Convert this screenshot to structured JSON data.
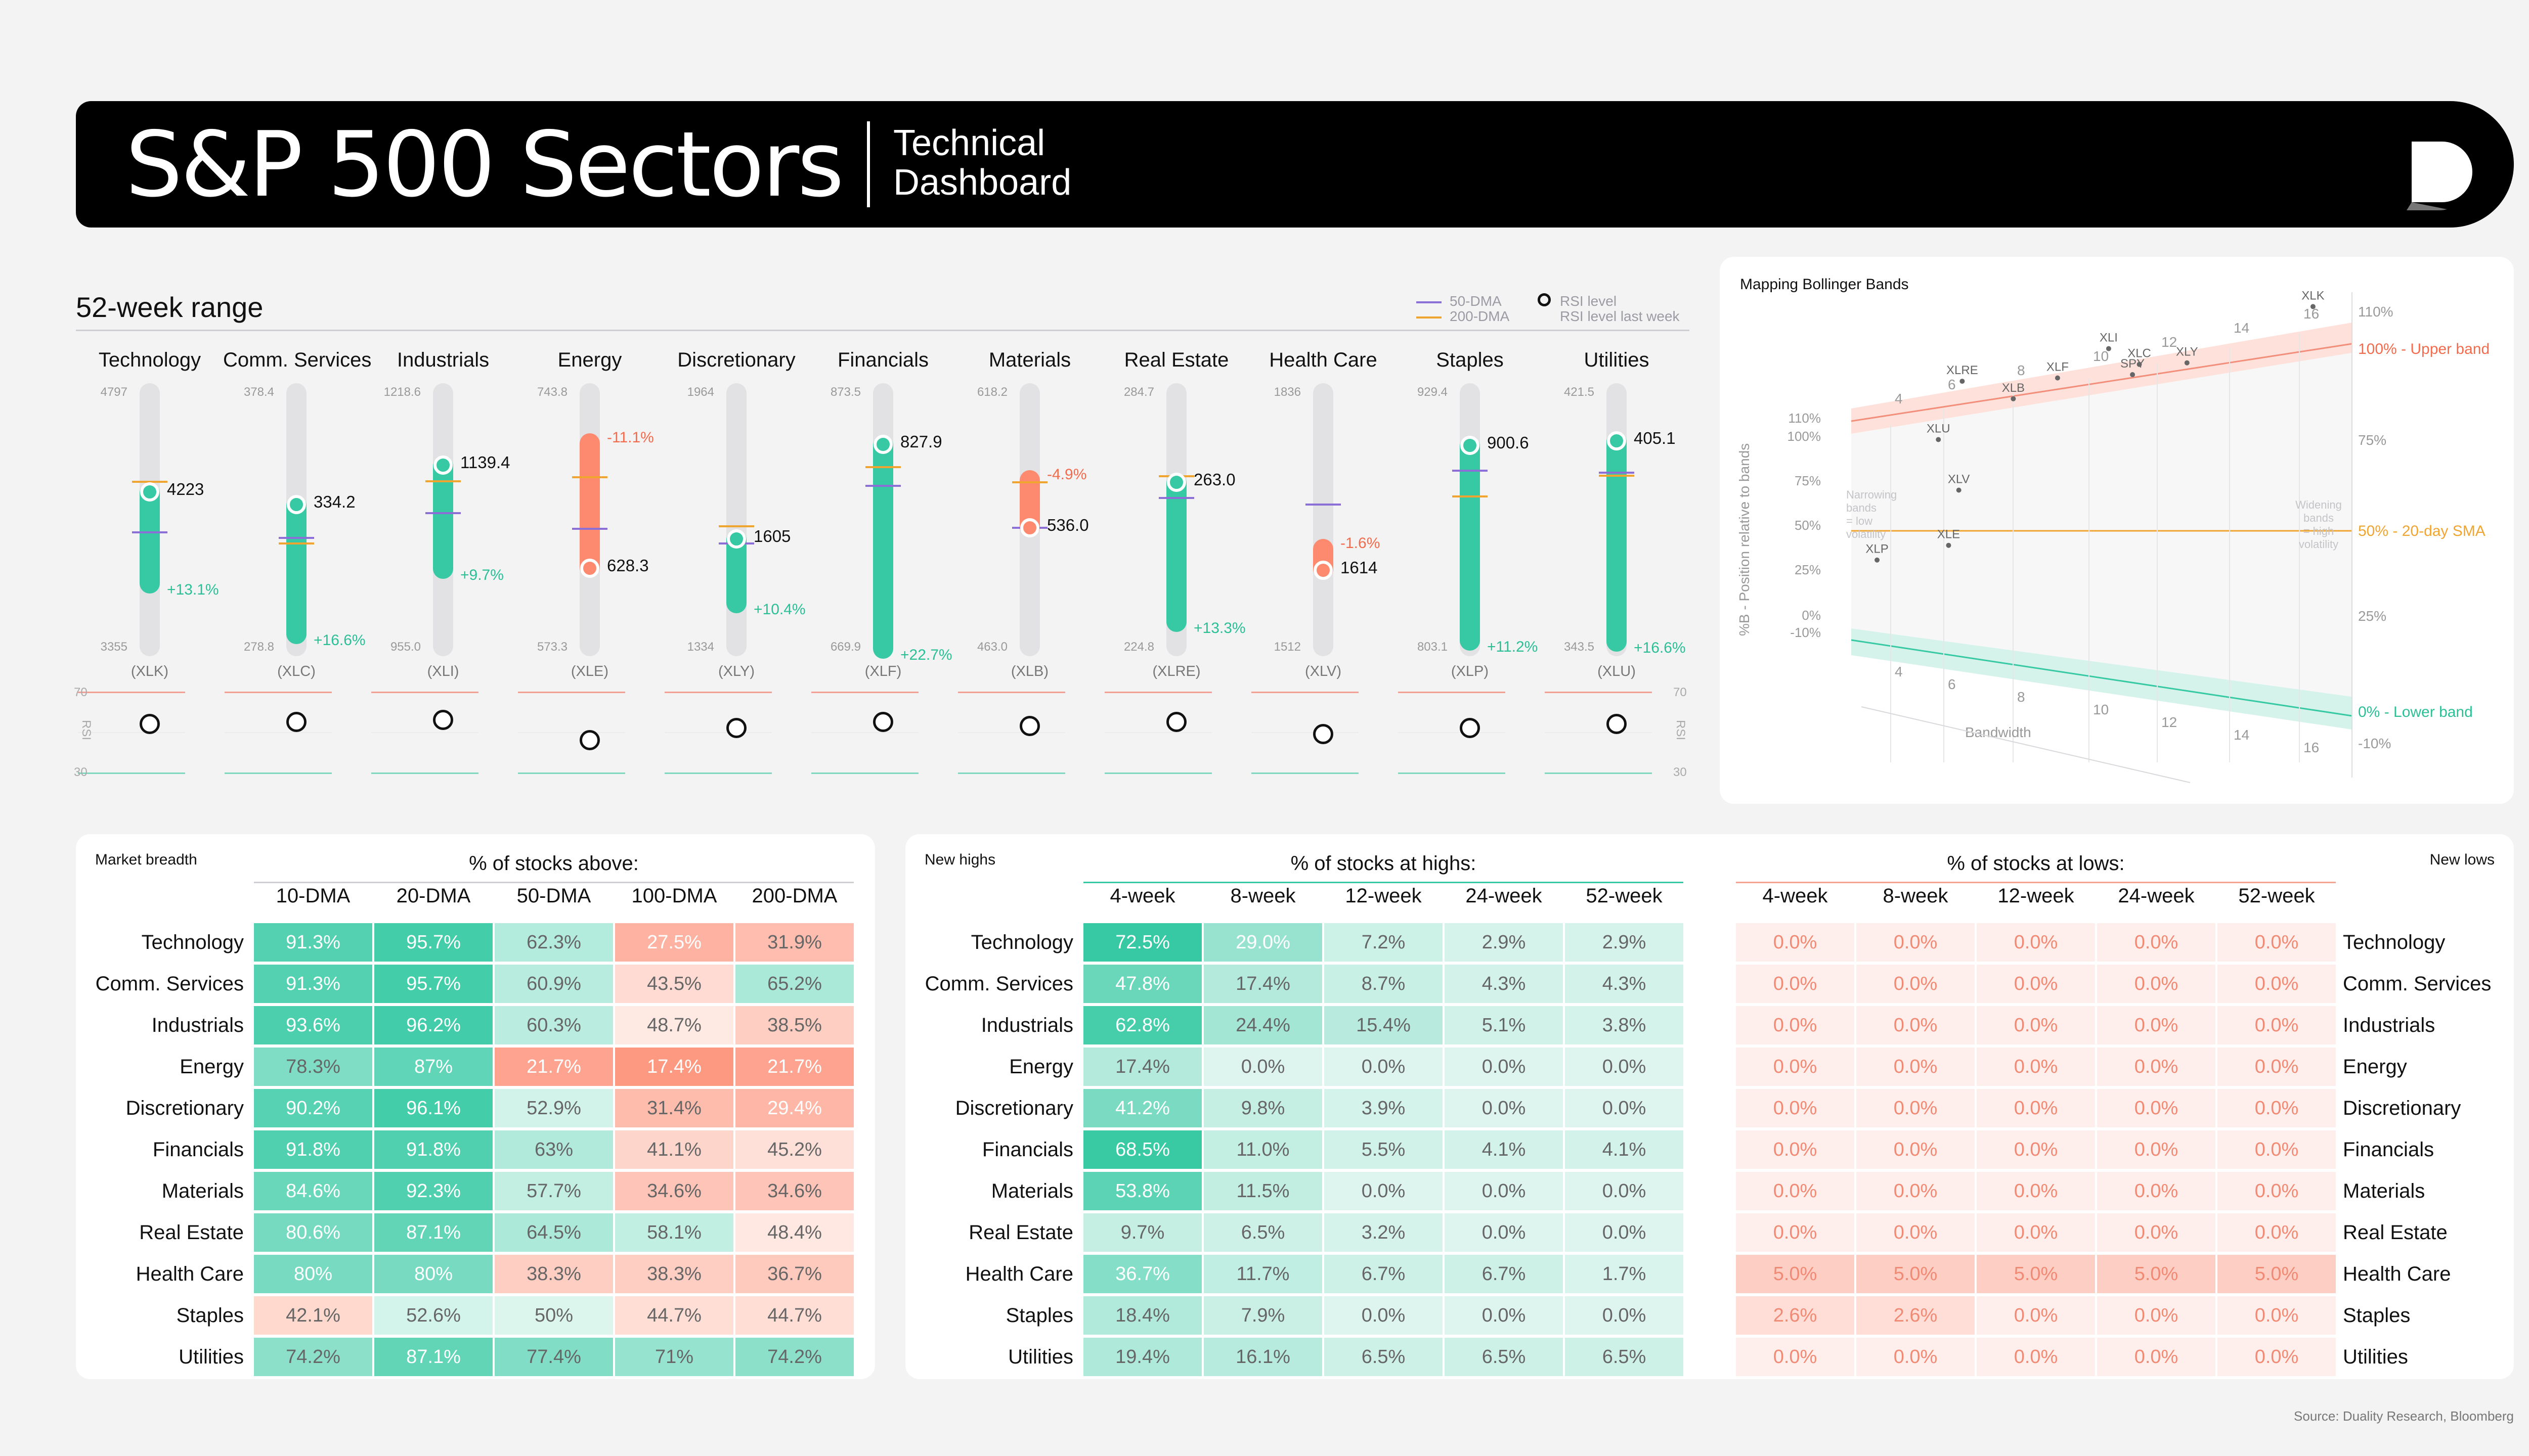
{
  "header": {
    "title": "S&P 500 Sectors",
    "subtitle_line1": "Technical",
    "subtitle_line2": "Dashboard",
    "logo_icon": "duality-logo-icon"
  },
  "range_panel": {
    "title": "52-week range",
    "legend": {
      "dma50": "50-DMA",
      "dma200": "200-DMA",
      "rsi": "RSI level",
      "rsi_last": "RSI level last week"
    },
    "rsi_axis_label": "RSI",
    "rsi_top": "70",
    "rsi_bottom": "30",
    "colors": {
      "positive": "#36c9a3",
      "negative": "#fd8a6f",
      "dma50": "#8b6fd6",
      "dma200": "#f0a531"
    }
  },
  "chart_data": [
    {
      "type": "range",
      "title": "52-week range",
      "sectors": [
        {
          "name": "Technology",
          "ticker": "(XLK)",
          "high": "4797",
          "low": "3355",
          "high_v": 4797,
          "low_v": 3355,
          "price": "4223",
          "price_v": 4223,
          "change": "+13.1%",
          "dir": "pos",
          "dma50": 4010,
          "dma200": 4275,
          "rsi": 54
        },
        {
          "name": "Comm. Services",
          "ticker": "(XLC)",
          "high": "378.4",
          "low": "278.8",
          "high_v": 378.4,
          "low_v": 278.8,
          "price": "334.2",
          "price_v": 334.2,
          "change": "+16.6%",
          "dir": "pos",
          "dma50": 322,
          "dma200": 320,
          "rsi": 55
        },
        {
          "name": "Industrials",
          "ticker": "(XLI)",
          "high": "1218.6",
          "low": "955.0",
          "high_v": 1218.6,
          "low_v": 955.0,
          "price": "1139.4",
          "price_v": 1139.4,
          "change": "+9.7%",
          "dir": "pos",
          "dma50": 1093,
          "dma200": 1124,
          "rsi": 56
        },
        {
          "name": "Energy",
          "ticker": "(XLE)",
          "high": "743.8",
          "low": "573.3",
          "high_v": 743.8,
          "low_v": 573.3,
          "price": "628.3",
          "price_v": 628.3,
          "change": "-11.1%",
          "dir": "neg",
          "dma50": 653,
          "dma200": 685,
          "rsi": 46
        },
        {
          "name": "Discretionary",
          "ticker": "(XLY)",
          "high": "1964",
          "low": "1334",
          "high_v": 1964,
          "low_v": 1334,
          "price": "1605",
          "price_v": 1605,
          "change": "+10.4%",
          "dir": "pos",
          "dma50": 1594,
          "dma200": 1634,
          "rsi": 52
        },
        {
          "name": "Financials",
          "ticker": "(XLF)",
          "high": "873.5",
          "low": "669.9",
          "high_v": 873.5,
          "low_v": 669.9,
          "price": "827.9",
          "price_v": 827.9,
          "change": "+22.7%",
          "dir": "pos",
          "dma50": 797,
          "dma200": 811,
          "rsi": 55
        },
        {
          "name": "Materials",
          "ticker": "(XLB)",
          "high": "618.2",
          "low": "463.0",
          "high_v": 618.2,
          "low_v": 463.0,
          "price": "536.0",
          "price_v": 536.0,
          "change": "-4.9%",
          "dir": "neg",
          "dma50": 536,
          "dma200": 562,
          "rsi": 53
        },
        {
          "name": "Real Estate",
          "ticker": "(XLRE)",
          "high": "284.7",
          "low": "224.8",
          "high_v": 284.7,
          "low_v": 224.8,
          "price": "263.0",
          "price_v": 263.0,
          "change": "+13.3%",
          "dir": "pos",
          "dma50": 259.5,
          "dma200": 264.3,
          "rsi": 55
        },
        {
          "name": "Health Care",
          "ticker": "(XLV)",
          "high": "1836",
          "low": "1512",
          "high_v": 1836,
          "low_v": 1512,
          "price": "1614",
          "price_v": 1614,
          "change": "-1.6%",
          "dir": "neg",
          "dma50": 1692,
          "dma200": 1692,
          "rsi": 49
        },
        {
          "name": "Staples",
          "ticker": "(XLP)",
          "high": "929.4",
          "low": "803.1",
          "high_v": 929.4,
          "low_v": 803.1,
          "price": "900.6",
          "price_v": 900.6,
          "change": "+11.2%",
          "dir": "pos",
          "dma50": 889,
          "dma200": 877,
          "rsi": 52
        },
        {
          "name": "Utilities",
          "ticker": "(XLU)",
          "high": "421.5",
          "low": "343.5",
          "high_v": 421.5,
          "low_v": 343.5,
          "price": "405.1",
          "price_v": 405.1,
          "change": "+16.6%",
          "dir": "pos",
          "dma50": 396,
          "dma200": 395,
          "rsi": 54
        }
      ]
    },
    {
      "type": "scatter",
      "title": "Mapping Bollinger Bands",
      "ylabel": "%B - Position relative to bands",
      "xlabel": "Bandwidth",
      "y_ticks_left": [
        "110%",
        "100%",
        "75%",
        "50%",
        "25%",
        "0%",
        "-10%"
      ],
      "y_ticks_right": [
        "110%",
        "75%",
        "25%",
        "-10%"
      ],
      "band_labels": {
        "upper": "100% - Upper band",
        "mid": "50% - 20-day SMA",
        "lower": "0% - Lower band"
      },
      "x_ticks": [
        "4",
        "6",
        "8",
        "10",
        "12",
        "14",
        "16"
      ],
      "notes": {
        "left": [
          "Narrowing",
          "bands",
          "= low",
          "volatility"
        ],
        "right": [
          "Widening",
          "bands",
          "= high",
          "volatility"
        ]
      },
      "points": [
        {
          "label": "XLP",
          "x": 3.6,
          "y": 37
        },
        {
          "label": "XLE",
          "x": 5.7,
          "y": 44
        },
        {
          "label": "XLV",
          "x": 6.0,
          "y": 66
        },
        {
          "label": "XLU",
          "x": 5.4,
          "y": 87
        },
        {
          "label": "XLRE",
          "x": 6.1,
          "y": 109
        },
        {
          "label": "XLB",
          "x": 7.6,
          "y": 99
        },
        {
          "label": "XLF",
          "x": 8.9,
          "y": 104
        },
        {
          "label": "XLI",
          "x": 10.4,
          "y": 111
        },
        {
          "label": "SPY",
          "x": 11.1,
          "y": 101
        },
        {
          "label": "XLC",
          "x": 11.3,
          "y": 104
        },
        {
          "label": "XLY",
          "x": 12.7,
          "y": 102
        },
        {
          "label": "XLK",
          "x": 16.4,
          "y": 112
        }
      ]
    }
  ],
  "breadth": {
    "title": "Market breadth",
    "group": "% of stocks above:",
    "columns": [
      "10-DMA",
      "20-DMA",
      "50-DMA",
      "100-DMA",
      "200-DMA"
    ],
    "rows": [
      {
        "name": "Technology",
        "values": [
          "91.3%",
          "95.7%",
          "62.3%",
          "27.5%",
          "31.9%"
        ],
        "v": [
          91.3,
          95.7,
          62.3,
          27.5,
          31.9
        ]
      },
      {
        "name": "Comm. Services",
        "values": [
          "91.3%",
          "95.7%",
          "60.9%",
          "43.5%",
          "65.2%"
        ],
        "v": [
          91.3,
          95.7,
          60.9,
          43.5,
          65.2
        ]
      },
      {
        "name": "Industrials",
        "values": [
          "93.6%",
          "96.2%",
          "60.3%",
          "48.7%",
          "38.5%"
        ],
        "v": [
          93.6,
          96.2,
          60.3,
          48.7,
          38.5
        ]
      },
      {
        "name": "Energy",
        "values": [
          "78.3%",
          "87%",
          "21.7%",
          "17.4%",
          "21.7%"
        ],
        "v": [
          78.3,
          87,
          21.7,
          17.4,
          21.7
        ]
      },
      {
        "name": "Discretionary",
        "values": [
          "90.2%",
          "96.1%",
          "52.9%",
          "31.4%",
          "29.4%"
        ],
        "v": [
          90.2,
          96.1,
          52.9,
          31.4,
          29.4
        ]
      },
      {
        "name": "Financials",
        "values": [
          "91.8%",
          "91.8%",
          "63%",
          "41.1%",
          "45.2%"
        ],
        "v": [
          91.8,
          91.8,
          63,
          41.1,
          45.2
        ]
      },
      {
        "name": "Materials",
        "values": [
          "84.6%",
          "92.3%",
          "57.7%",
          "34.6%",
          "34.6%"
        ],
        "v": [
          84.6,
          92.3,
          57.7,
          34.6,
          34.6
        ]
      },
      {
        "name": "Real Estate",
        "values": [
          "80.6%",
          "87.1%",
          "64.5%",
          "58.1%",
          "48.4%"
        ],
        "v": [
          80.6,
          87.1,
          64.5,
          58.1,
          48.4
        ]
      },
      {
        "name": "Health Care",
        "values": [
          "80%",
          "80%",
          "38.3%",
          "38.3%",
          "36.7%"
        ],
        "v": [
          80,
          80,
          38.3,
          38.3,
          36.7
        ]
      },
      {
        "name": "Staples",
        "values": [
          "42.1%",
          "52.6%",
          "50%",
          "44.7%",
          "44.7%"
        ],
        "v": [
          42.1,
          52.6,
          50,
          44.7,
          44.7
        ]
      },
      {
        "name": "Utilities",
        "values": [
          "74.2%",
          "87.1%",
          "77.4%",
          "71%",
          "74.2%"
        ],
        "v": [
          74.2,
          87.1,
          77.4,
          71,
          74.2
        ]
      }
    ]
  },
  "highs_lows": {
    "title_highs": "New highs",
    "title_lows": "New lows",
    "group_highs": "% of stocks at highs:",
    "group_lows": "% of stocks at lows:",
    "columns": [
      "4-week",
      "8-week",
      "12-week",
      "24-week",
      "52-week"
    ],
    "rows": [
      {
        "name": "Technology",
        "highs": [
          "72.5%",
          "29.0%",
          "7.2%",
          "2.9%",
          "2.9%"
        ],
        "h": [
          72.5,
          29.0,
          7.2,
          2.9,
          2.9
        ],
        "lows": [
          "0.0%",
          "0.0%",
          "0.0%",
          "0.0%",
          "0.0%"
        ],
        "l": [
          0,
          0,
          0,
          0,
          0
        ]
      },
      {
        "name": "Comm. Services",
        "highs": [
          "47.8%",
          "17.4%",
          "8.7%",
          "4.3%",
          "4.3%"
        ],
        "h": [
          47.8,
          17.4,
          8.7,
          4.3,
          4.3
        ],
        "lows": [
          "0.0%",
          "0.0%",
          "0.0%",
          "0.0%",
          "0.0%"
        ],
        "l": [
          0,
          0,
          0,
          0,
          0
        ]
      },
      {
        "name": "Industrials",
        "highs": [
          "62.8%",
          "24.4%",
          "15.4%",
          "5.1%",
          "3.8%"
        ],
        "h": [
          62.8,
          24.4,
          15.4,
          5.1,
          3.8
        ],
        "lows": [
          "0.0%",
          "0.0%",
          "0.0%",
          "0.0%",
          "0.0%"
        ],
        "l": [
          0,
          0,
          0,
          0,
          0
        ]
      },
      {
        "name": "Energy",
        "highs": [
          "17.4%",
          "0.0%",
          "0.0%",
          "0.0%",
          "0.0%"
        ],
        "h": [
          17.4,
          0,
          0,
          0,
          0
        ],
        "lows": [
          "0.0%",
          "0.0%",
          "0.0%",
          "0.0%",
          "0.0%"
        ],
        "l": [
          0,
          0,
          0,
          0,
          0
        ]
      },
      {
        "name": "Discretionary",
        "highs": [
          "41.2%",
          "9.8%",
          "3.9%",
          "0.0%",
          "0.0%"
        ],
        "h": [
          41.2,
          9.8,
          3.9,
          0,
          0
        ],
        "lows": [
          "0.0%",
          "0.0%",
          "0.0%",
          "0.0%",
          "0.0%"
        ],
        "l": [
          0,
          0,
          0,
          0,
          0
        ]
      },
      {
        "name": "Financials",
        "highs": [
          "68.5%",
          "11.0%",
          "5.5%",
          "4.1%",
          "4.1%"
        ],
        "h": [
          68.5,
          11.0,
          5.5,
          4.1,
          4.1
        ],
        "lows": [
          "0.0%",
          "0.0%",
          "0.0%",
          "0.0%",
          "0.0%"
        ],
        "l": [
          0,
          0,
          0,
          0,
          0
        ]
      },
      {
        "name": "Materials",
        "highs": [
          "53.8%",
          "11.5%",
          "0.0%",
          "0.0%",
          "0.0%"
        ],
        "h": [
          53.8,
          11.5,
          0,
          0,
          0
        ],
        "lows": [
          "0.0%",
          "0.0%",
          "0.0%",
          "0.0%",
          "0.0%"
        ],
        "l": [
          0,
          0,
          0,
          0,
          0
        ]
      },
      {
        "name": "Real Estate",
        "highs": [
          "9.7%",
          "6.5%",
          "3.2%",
          "0.0%",
          "0.0%"
        ],
        "h": [
          9.7,
          6.5,
          3.2,
          0,
          0
        ],
        "lows": [
          "0.0%",
          "0.0%",
          "0.0%",
          "0.0%",
          "0.0%"
        ],
        "l": [
          0,
          0,
          0,
          0,
          0
        ]
      },
      {
        "name": "Health Care",
        "highs": [
          "36.7%",
          "11.7%",
          "6.7%",
          "6.7%",
          "1.7%"
        ],
        "h": [
          36.7,
          11.7,
          6.7,
          6.7,
          1.7
        ],
        "lows": [
          "5.0%",
          "5.0%",
          "5.0%",
          "5.0%",
          "5.0%"
        ],
        "l": [
          5,
          5,
          5,
          5,
          5
        ]
      },
      {
        "name": "Staples",
        "highs": [
          "18.4%",
          "7.9%",
          "0.0%",
          "0.0%",
          "0.0%"
        ],
        "h": [
          18.4,
          7.9,
          0,
          0,
          0
        ],
        "lows": [
          "2.6%",
          "2.6%",
          "0.0%",
          "0.0%",
          "0.0%"
        ],
        "l": [
          2.6,
          2.6,
          0,
          0,
          0
        ]
      },
      {
        "name": "Utilities",
        "highs": [
          "19.4%",
          "16.1%",
          "6.5%",
          "6.5%",
          "6.5%"
        ],
        "h": [
          19.4,
          16.1,
          6.5,
          6.5,
          6.5
        ],
        "lows": [
          "0.0%",
          "0.0%",
          "0.0%",
          "0.0%",
          "0.0%"
        ],
        "l": [
          0,
          0,
          0,
          0,
          0
        ]
      }
    ]
  },
  "source": "Source: Duality Research, Bloomberg"
}
